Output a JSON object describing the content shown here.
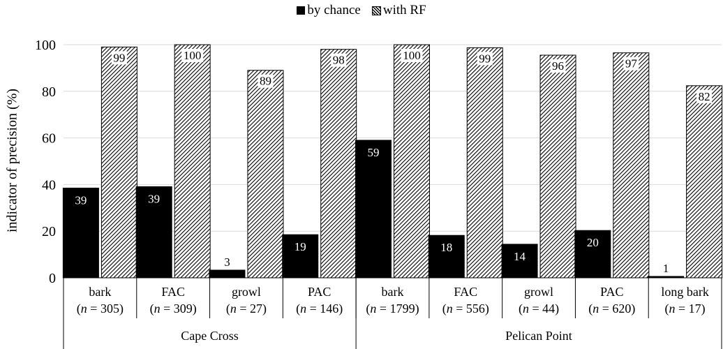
{
  "chart_data": {
    "type": "bar",
    "title": "",
    "xlabel": "",
    "ylabel": "indicator of precision (%)",
    "ylim": [
      0,
      100
    ],
    "yticks": [
      0,
      20,
      40,
      60,
      80,
      100
    ],
    "grid": true,
    "legend_position": "top-center",
    "categories": [
      {
        "name": "bark",
        "n_label": "n",
        "n_value": "= 305)",
        "group": "Cape Cross"
      },
      {
        "name": "FAC",
        "n_label": "n",
        "n_value": "= 309)",
        "group": "Cape Cross"
      },
      {
        "name": "growl",
        "n_label": "n",
        "n_value": "= 27)",
        "group": "Cape Cross"
      },
      {
        "name": "PAC",
        "n_label": "n",
        "n_value": "= 146)",
        "group": "Cape Cross"
      },
      {
        "name": "bark",
        "n_label": "n",
        "n_value": "= 1799)",
        "group": "Pelican Point"
      },
      {
        "name": "FAC",
        "n_label": "n",
        "n_value": "= 556)",
        "group": "Pelican Point"
      },
      {
        "name": "growl",
        "n_label": "n",
        "n_value": "= 44)",
        "group": "Pelican Point"
      },
      {
        "name": "PAC",
        "n_label": "n",
        "n_value": "= 620)",
        "group": "Pelican Point"
      },
      {
        "name": "long bark",
        "n_label": "n",
        "n_value": "= 17)",
        "group": "Pelican Point"
      }
    ],
    "groups": [
      {
        "name": "Cape Cross",
        "count": 4
      },
      {
        "name": "Pelican Point",
        "count": 5
      }
    ],
    "series": [
      {
        "name": "by chance",
        "style": "solid",
        "color": "#000000",
        "values": [
          38.5,
          39.1,
          3.3,
          18.5,
          59.0,
          18.2,
          14.4,
          20.3,
          0.6
        ],
        "labels": [
          "39",
          "39",
          "3",
          "19",
          "59",
          "18",
          "14",
          "20",
          "1"
        ]
      },
      {
        "name": "with RF",
        "style": "hatched",
        "color": "#000000",
        "values": [
          99.0,
          100.0,
          89.0,
          98.0,
          100.0,
          98.7,
          95.5,
          96.5,
          82.4
        ],
        "labels": [
          "99",
          "100",
          "89",
          "98",
          "100",
          "99",
          "96",
          "97",
          "82"
        ]
      }
    ]
  }
}
